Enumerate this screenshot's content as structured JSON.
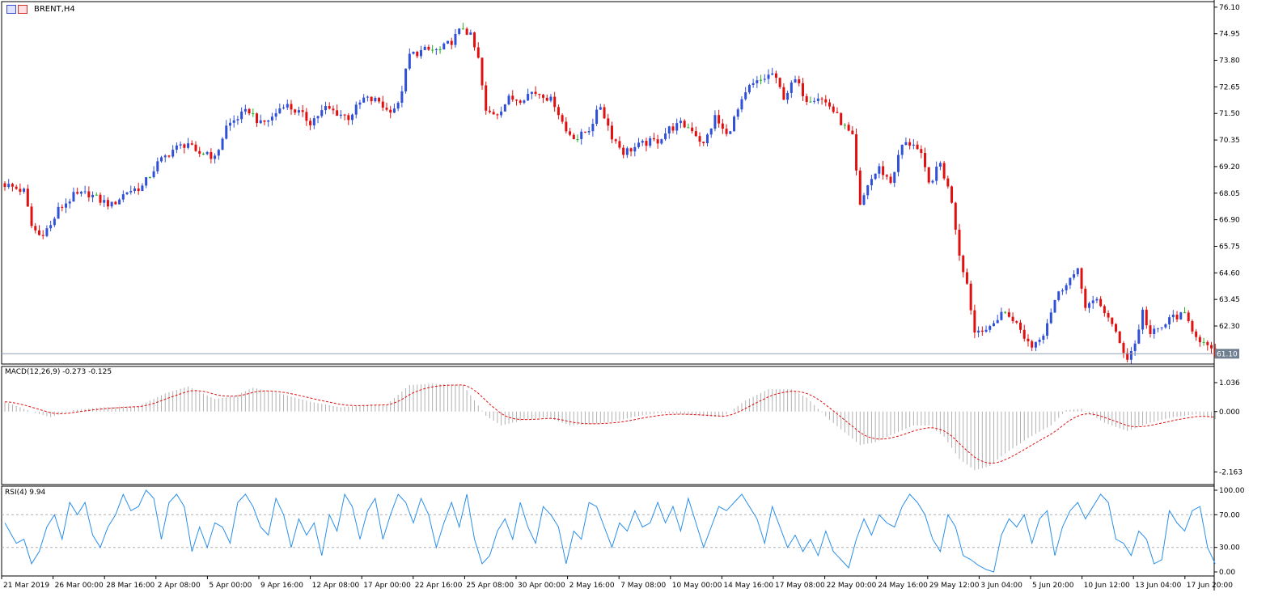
{
  "window": {
    "symbol_label": "BRENT,H4"
  },
  "indicators": {
    "macd_label": "MACD(12,26,9) -0.273 -0.125",
    "rsi_label": "RSI(4) 9.94"
  },
  "colors": {
    "bull": "#3050d8",
    "bear": "#e01010",
    "doji": "#20b020",
    "macd_hist": "#b0b0b0",
    "macd_signal": "#e01010",
    "rsi_line": "#2a8fe8",
    "current_price_line": "#8fa0b0",
    "current_price_bg": "#708090"
  },
  "chart_data": [
    {
      "type": "candlestick",
      "title": "BRENT,H4",
      "ylim": [
        60.9,
        76.2
      ],
      "yticks": [
        "76.10",
        "74.95",
        "73.80",
        "72.65",
        "71.50",
        "70.35",
        "69.20",
        "68.05",
        "66.90",
        "65.75",
        "64.60",
        "63.45",
        "62.30"
      ],
      "current_price": 61.1,
      "current_price_label": "61.10",
      "xticks": [
        "21 Mar 2019",
        "26 Mar 00:00",
        "28 Mar 16:00",
        "2 Apr 08:00",
        "5 Apr 00:00",
        "9 Apr 16:00",
        "12 Apr 08:00",
        "17 Apr 00:00",
        "22 Apr 16:00",
        "25 Apr 08:00",
        "30 Apr 00:00",
        "2 May 16:00",
        "7 May 08:00",
        "10 May 00:00",
        "14 May 16:00",
        "17 May 08:00",
        "22 May 00:00",
        "24 May 16:00",
        "29 May 12:00",
        "3 Jun 04:00",
        "5 Jun 20:00",
        "10 Jun 12:00",
        "13 Jun 04:00",
        "17 Jun 20:00"
      ],
      "close_anchors": [
        [
          0,
          68.5
        ],
        [
          5,
          68.2
        ],
        [
          7,
          66.7
        ],
        [
          9,
          66.3
        ],
        [
          12,
          66.7
        ],
        [
          14,
          67.4
        ],
        [
          18,
          68.0
        ],
        [
          22,
          68.1
        ],
        [
          25,
          67.8
        ],
        [
          28,
          67.6
        ],
        [
          32,
          68.2
        ],
        [
          36,
          68.4
        ],
        [
          40,
          69.4
        ],
        [
          44,
          70.0
        ],
        [
          48,
          70.3
        ],
        [
          50,
          69.8
        ],
        [
          53,
          69.9
        ],
        [
          55,
          69.6
        ],
        [
          58,
          71.0
        ],
        [
          61,
          71.4
        ],
        [
          64,
          71.7
        ],
        [
          67,
          71.1
        ],
        [
          70,
          71.4
        ],
        [
          73,
          72.0
        ],
        [
          77,
          71.6
        ],
        [
          80,
          71.2
        ],
        [
          84,
          71.8
        ],
        [
          87,
          71.6
        ],
        [
          90,
          71.4
        ],
        [
          94,
          72.2
        ],
        [
          98,
          72.1
        ],
        [
          100,
          71.7
        ],
        [
          103,
          71.9
        ],
        [
          106,
          74.1
        ],
        [
          110,
          74.3
        ],
        [
          114,
          74.3
        ],
        [
          117,
          74.7
        ],
        [
          120,
          75.3
        ],
        [
          122,
          74.9
        ],
        [
          124,
          73.9
        ],
        [
          126,
          71.6
        ],
        [
          129,
          71.6
        ],
        [
          132,
          72.2
        ],
        [
          135,
          72.2
        ],
        [
          138,
          72.5
        ],
        [
          141,
          72.4
        ],
        [
          144,
          72.0
        ],
        [
          147,
          70.8
        ],
        [
          150,
          70.5
        ],
        [
          153,
          70.9
        ],
        [
          156,
          71.9
        ],
        [
          159,
          70.6
        ],
        [
          162,
          69.9
        ],
        [
          165,
          70.1
        ],
        [
          168,
          70.3
        ],
        [
          171,
          70.4
        ],
        [
          174,
          70.9
        ],
        [
          177,
          71.1
        ],
        [
          180,
          70.9
        ],
        [
          183,
          70.2
        ],
        [
          186,
          71.4
        ],
        [
          189,
          70.6
        ],
        [
          192,
          71.7
        ],
        [
          195,
          72.7
        ],
        [
          198,
          73.0
        ],
        [
          201,
          73.3
        ],
        [
          204,
          72.3
        ],
        [
          207,
          73.0
        ],
        [
          210,
          72.2
        ],
        [
          213,
          72.3
        ],
        [
          216,
          71.9
        ],
        [
          219,
          71.2
        ],
        [
          222,
          70.5
        ],
        [
          224,
          67.5
        ],
        [
          226,
          68.5
        ],
        [
          229,
          69.2
        ],
        [
          232,
          68.6
        ],
        [
          235,
          70.2
        ],
        [
          238,
          70.3
        ],
        [
          240,
          69.7
        ],
        [
          242,
          68.5
        ],
        [
          245,
          69.4
        ],
        [
          248,
          67.8
        ],
        [
          250,
          65.5
        ],
        [
          252,
          64.2
        ],
        [
          254,
          62.1
        ],
        [
          256,
          62.3
        ],
        [
          258,
          62.2
        ],
        [
          261,
          63.0
        ],
        [
          264,
          62.7
        ],
        [
          267,
          61.9
        ],
        [
          269,
          61.5
        ],
        [
          272,
          62.1
        ],
        [
          275,
          63.5
        ],
        [
          278,
          64.3
        ],
        [
          281,
          64.7
        ],
        [
          283,
          63.3
        ],
        [
          286,
          63.4
        ],
        [
          289,
          62.8
        ],
        [
          292,
          61.6
        ],
        [
          294,
          61.0
        ],
        [
          296,
          61.6
        ],
        [
          298,
          63.0
        ],
        [
          300,
          62.0
        ],
        [
          303,
          62.3
        ],
        [
          306,
          62.8
        ],
        [
          309,
          62.8
        ],
        [
          312,
          62.0
        ],
        [
          315,
          61.4
        ],
        [
          317,
          61.1
        ]
      ],
      "candle_count": 318
    },
    {
      "type": "line",
      "title": "MACD(12,26,9) -0.273 -0.125",
      "series": [
        {
          "name": "MACD",
          "style": "histogram",
          "last": -0.273
        },
        {
          "name": "Signal",
          "style": "dashed-line",
          "last": -0.125
        }
      ],
      "yticks": [
        "1.036",
        "0.000",
        "-2.163"
      ],
      "ylim": [
        -2.5,
        1.5
      ],
      "macd_anchors": [
        [
          0,
          0.35
        ],
        [
          8,
          -0.05
        ],
        [
          12,
          -0.2
        ],
        [
          18,
          0.05
        ],
        [
          25,
          0.15
        ],
        [
          35,
          0.2
        ],
        [
          42,
          0.65
        ],
        [
          48,
          0.9
        ],
        [
          55,
          0.45
        ],
        [
          60,
          0.55
        ],
        [
          65,
          0.85
        ],
        [
          72,
          0.65
        ],
        [
          80,
          0.35
        ],
        [
          88,
          0.15
        ],
        [
          96,
          0.25
        ],
        [
          100,
          0.25
        ],
        [
          106,
          0.95
        ],
        [
          112,
          1.0
        ],
        [
          120,
          0.95
        ],
        [
          126,
          -0.15
        ],
        [
          130,
          -0.5
        ],
        [
          136,
          -0.3
        ],
        [
          142,
          -0.2
        ],
        [
          148,
          -0.5
        ],
        [
          154,
          -0.45
        ],
        [
          160,
          -0.35
        ],
        [
          166,
          -0.15
        ],
        [
          172,
          -0.05
        ],
        [
          178,
          -0.1
        ],
        [
          182,
          -0.15
        ],
        [
          188,
          -0.2
        ],
        [
          194,
          0.4
        ],
        [
          200,
          0.8
        ],
        [
          206,
          0.8
        ],
        [
          210,
          0.5
        ],
        [
          216,
          -0.3
        ],
        [
          220,
          -0.75
        ],
        [
          224,
          -1.2
        ],
        [
          228,
          -1.1
        ],
        [
          232,
          -0.85
        ],
        [
          238,
          -0.5
        ],
        [
          242,
          -0.5
        ],
        [
          246,
          -0.9
        ],
        [
          250,
          -1.7
        ],
        [
          254,
          -2.1
        ],
        [
          258,
          -1.95
        ],
        [
          262,
          -1.5
        ],
        [
          268,
          -0.95
        ],
        [
          274,
          -0.5
        ],
        [
          278,
          0.05
        ],
        [
          282,
          0.1
        ],
        [
          288,
          -0.4
        ],
        [
          294,
          -0.7
        ],
        [
          300,
          -0.4
        ],
        [
          306,
          -0.2
        ],
        [
          312,
          -0.1
        ],
        [
          317,
          -0.273
        ]
      ]
    },
    {
      "type": "line",
      "title": "RSI(4) 9.94",
      "series": [
        {
          "name": "RSI(4)",
          "last": 9.94
        }
      ],
      "ylim": [
        0,
        100
      ],
      "yticks": [
        "100.00",
        "70.00",
        "30.00",
        "0.00"
      ],
      "levels": [
        70,
        30
      ],
      "rsi_anchors": [
        [
          0,
          60
        ],
        [
          3,
          35
        ],
        [
          5,
          40
        ],
        [
          7,
          10
        ],
        [
          9,
          25
        ],
        [
          11,
          55
        ],
        [
          13,
          70
        ],
        [
          15,
          40
        ],
        [
          17,
          85
        ],
        [
          19,
          70
        ],
        [
          21,
          85
        ],
        [
          23,
          45
        ],
        [
          25,
          30
        ],
        [
          27,
          55
        ],
        [
          29,
          70
        ],
        [
          31,
          95
        ],
        [
          33,
          75
        ],
        [
          35,
          80
        ],
        [
          37,
          100
        ],
        [
          39,
          90
        ],
        [
          41,
          40
        ],
        [
          43,
          85
        ],
        [
          45,
          95
        ],
        [
          47,
          80
        ],
        [
          49,
          25
        ],
        [
          51,
          55
        ],
        [
          53,
          30
        ],
        [
          55,
          60
        ],
        [
          57,
          55
        ],
        [
          59,
          35
        ],
        [
          61,
          85
        ],
        [
          63,
          95
        ],
        [
          65,
          80
        ],
        [
          67,
          55
        ],
        [
          69,
          45
        ],
        [
          71,
          90
        ],
        [
          73,
          70
        ],
        [
          75,
          30
        ],
        [
          77,
          65
        ],
        [
          79,
          45
        ],
        [
          81,
          60
        ],
        [
          83,
          20
        ],
        [
          85,
          70
        ],
        [
          87,
          50
        ],
        [
          89,
          95
        ],
        [
          91,
          80
        ],
        [
          93,
          40
        ],
        [
          95,
          75
        ],
        [
          97,
          90
        ],
        [
          99,
          40
        ],
        [
          101,
          70
        ],
        [
          103,
          95
        ],
        [
          105,
          85
        ],
        [
          107,
          60
        ],
        [
          109,
          90
        ],
        [
          111,
          70
        ],
        [
          113,
          30
        ],
        [
          115,
          60
        ],
        [
          117,
          85
        ],
        [
          119,
          55
        ],
        [
          121,
          95
        ],
        [
          123,
          40
        ],
        [
          125,
          10
        ],
        [
          127,
          20
        ],
        [
          129,
          50
        ],
        [
          131,
          65
        ],
        [
          133,
          40
        ],
        [
          135,
          85
        ],
        [
          137,
          55
        ],
        [
          139,
          35
        ],
        [
          141,
          80
        ],
        [
          143,
          70
        ],
        [
          145,
          55
        ],
        [
          147,
          10
        ],
        [
          149,
          50
        ],
        [
          151,
          40
        ],
        [
          153,
          85
        ],
        [
          155,
          80
        ],
        [
          157,
          55
        ],
        [
          159,
          30
        ],
        [
          161,
          60
        ],
        [
          163,
          50
        ],
        [
          165,
          75
        ],
        [
          167,
          55
        ],
        [
          169,
          60
        ],
        [
          171,
          85
        ],
        [
          173,
          60
        ],
        [
          175,
          80
        ],
        [
          177,
          50
        ],
        [
          179,
          90
        ],
        [
          181,
          60
        ],
        [
          183,
          30
        ],
        [
          185,
          55
        ],
        [
          187,
          80
        ],
        [
          189,
          75
        ],
        [
          191,
          85
        ],
        [
          193,
          95
        ],
        [
          195,
          80
        ],
        [
          197,
          65
        ],
        [
          199,
          35
        ],
        [
          201,
          80
        ],
        [
          203,
          55
        ],
        [
          205,
          30
        ],
        [
          207,
          45
        ],
        [
          209,
          25
        ],
        [
          211,
          40
        ],
        [
          213,
          20
        ],
        [
          215,
          50
        ],
        [
          217,
          25
        ],
        [
          219,
          15
        ],
        [
          221,
          5
        ],
        [
          223,
          40
        ],
        [
          225,
          65
        ],
        [
          227,
          45
        ],
        [
          229,
          70
        ],
        [
          231,
          60
        ],
        [
          233,
          55
        ],
        [
          235,
          80
        ],
        [
          237,
          95
        ],
        [
          239,
          85
        ],
        [
          241,
          70
        ],
        [
          243,
          40
        ],
        [
          245,
          25
        ],
        [
          247,
          70
        ],
        [
          249,
          55
        ],
        [
          251,
          20
        ],
        [
          253,
          15
        ],
        [
          255,
          8
        ],
        [
          257,
          3
        ],
        [
          259,
          0
        ],
        [
          261,
          45
        ],
        [
          263,
          65
        ],
        [
          265,
          55
        ],
        [
          267,
          70
        ],
        [
          269,
          35
        ],
        [
          271,
          65
        ],
        [
          273,
          75
        ],
        [
          275,
          20
        ],
        [
          277,
          55
        ],
        [
          279,
          75
        ],
        [
          281,
          85
        ],
        [
          283,
          65
        ],
        [
          285,
          80
        ],
        [
          287,
          95
        ],
        [
          289,
          85
        ],
        [
          291,
          40
        ],
        [
          293,
          35
        ],
        [
          295,
          20
        ],
        [
          297,
          50
        ],
        [
          299,
          40
        ],
        [
          301,
          10
        ],
        [
          303,
          15
        ],
        [
          305,
          75
        ],
        [
          307,
          60
        ],
        [
          309,
          50
        ],
        [
          311,
          75
        ],
        [
          313,
          80
        ],
        [
          315,
          30
        ],
        [
          317,
          10
        ]
      ]
    }
  ]
}
